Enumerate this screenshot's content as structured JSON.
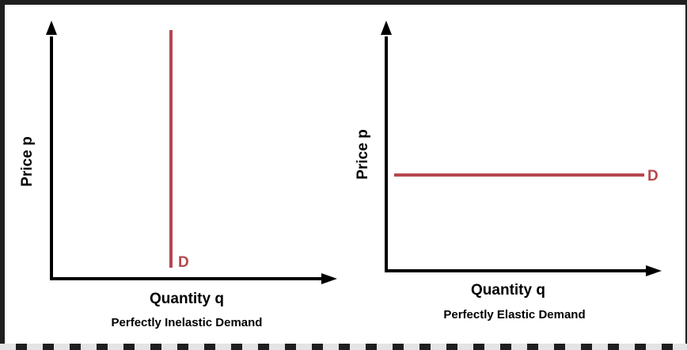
{
  "left": {
    "ylabel": "Price p",
    "xlabel": "Quantity q",
    "caption": "Perfectly Inelastic Demand",
    "curve_label": "D",
    "curve_color": "#b5474e"
  },
  "right": {
    "ylabel": "Price p",
    "xlabel": "Quantity q",
    "caption": "Perfectly Elastic Demand",
    "curve_label": "D",
    "curve_color": "#b5474e"
  }
}
